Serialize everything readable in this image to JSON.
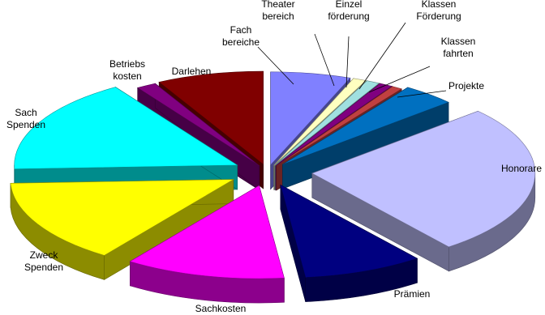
{
  "chart_data": {
    "type": "pie",
    "style": "3d-exploded",
    "title": "",
    "legend": "none",
    "slices": [
      {
        "label": "Fach\nbereiche",
        "value": 6.0,
        "color": "#8080ff",
        "callout": true
      },
      {
        "label": "Theater\nbereich",
        "value": 1.0,
        "color": "#ffffc0",
        "callout": true
      },
      {
        "label": "Einzel\nförderung",
        "value": 1.0,
        "color": "#a0e0e0",
        "callout": true
      },
      {
        "label": "Klassen\nFörderung",
        "value": 1.0,
        "color": "#800080",
        "callout": true
      },
      {
        "label": "Klassen\nfahrten",
        "value": 0.8,
        "color": "#c04040",
        "callout": true
      },
      {
        "label": "Projekte",
        "value": 4.0,
        "color": "#0070c0",
        "callout": true
      },
      {
        "label": "Honorare",
        "value": 27.0,
        "color": "#c0c0ff",
        "callout": false
      },
      {
        "label": "Prämien",
        "value": 9.0,
        "color": "#000080",
        "callout": false
      },
      {
        "label": "Sachkosten",
        "value": 12.0,
        "color": "#ff00ff",
        "callout": false
      },
      {
        "label": "Zweck\nSpenden",
        "value": 15.0,
        "color": "#ffff00",
        "callout": false
      },
      {
        "label": "Sach\nSpenden",
        "value": 17.0,
        "color": "#00ffff",
        "callout": false
      },
      {
        "label": "Betriebs\nkosten",
        "value": 1.5,
        "color": "#800080",
        "callout": false
      },
      {
        "label": "Darlehen",
        "value": 8.0,
        "color": "#800000",
        "callout": false
      }
    ]
  }
}
